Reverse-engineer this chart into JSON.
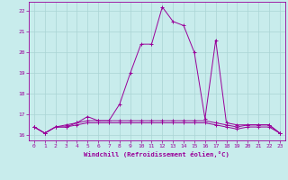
{
  "xlabel": "Windchill (Refroidissement éolien,°C)",
  "background_color": "#c8ecec",
  "grid_color": "#aad4d4",
  "line_color": "#990099",
  "xlim": [
    -0.5,
    23.5
  ],
  "ylim": [
    15.75,
    22.45
  ],
  "xticks": [
    0,
    1,
    2,
    3,
    4,
    5,
    6,
    7,
    8,
    9,
    10,
    11,
    12,
    13,
    14,
    15,
    16,
    17,
    18,
    19,
    20,
    21,
    22,
    23
  ],
  "yticks": [
    16,
    17,
    18,
    19,
    20,
    21,
    22
  ],
  "series": [
    {
      "x": [
        0,
        1,
        2,
        3,
        4,
        5,
        6,
        7,
        8,
        9,
        10,
        11,
        12,
        13,
        14,
        15,
        16,
        17,
        18,
        19,
        20,
        21,
        22,
        23
      ],
      "y": [
        16.4,
        16.1,
        16.4,
        16.4,
        16.6,
        16.9,
        16.7,
        16.7,
        17.5,
        19.0,
        20.4,
        20.4,
        22.2,
        21.5,
        21.3,
        20.0,
        16.8,
        20.6,
        16.6,
        16.5,
        16.5,
        16.5,
        16.5,
        16.1
      ]
    },
    {
      "x": [
        0,
        1,
        2,
        3,
        4,
        5,
        6,
        7,
        8,
        9,
        10,
        11,
        12,
        13,
        14,
        15,
        16,
        17,
        18,
        19,
        20,
        21,
        22,
        23
      ],
      "y": [
        16.4,
        16.1,
        16.4,
        16.5,
        16.6,
        16.7,
        16.7,
        16.7,
        16.7,
        16.7,
        16.7,
        16.7,
        16.7,
        16.7,
        16.7,
        16.7,
        16.7,
        16.6,
        16.5,
        16.4,
        16.5,
        16.5,
        16.5,
        16.1
      ]
    },
    {
      "x": [
        0,
        1,
        2,
        3,
        4,
        5,
        6,
        7,
        8,
        9,
        10,
        11,
        12,
        13,
        14,
        15,
        16,
        17,
        18,
        19,
        20,
        21,
        22,
        23
      ],
      "y": [
        16.4,
        16.1,
        16.4,
        16.4,
        16.5,
        16.6,
        16.6,
        16.6,
        16.6,
        16.6,
        16.6,
        16.6,
        16.6,
        16.6,
        16.6,
        16.6,
        16.6,
        16.5,
        16.4,
        16.3,
        16.4,
        16.4,
        16.4,
        16.1
      ]
    }
  ]
}
